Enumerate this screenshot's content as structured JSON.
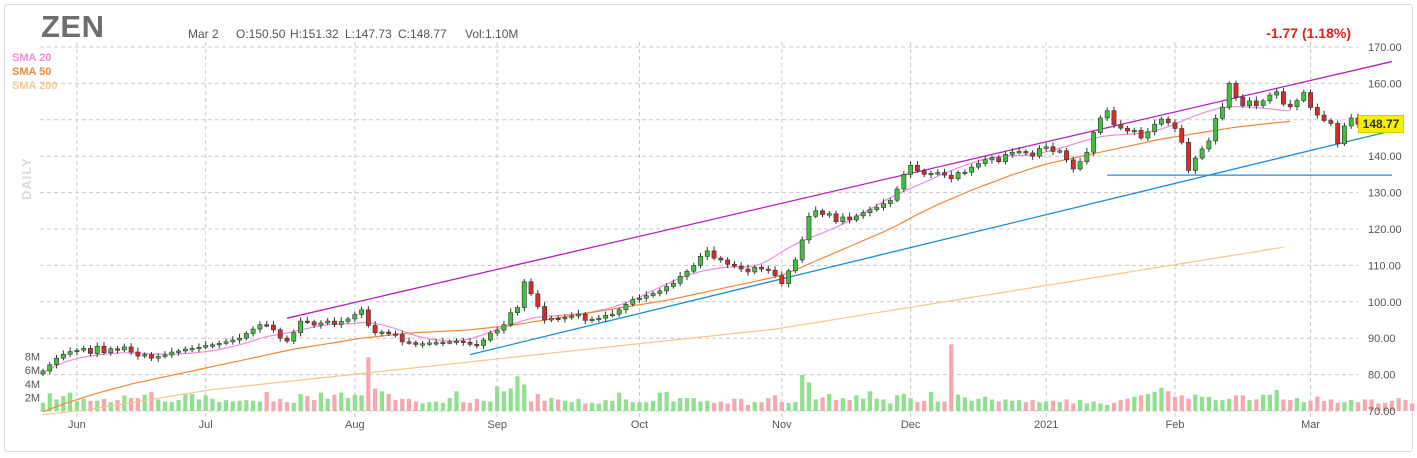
{
  "header": {
    "ticker": "ZEN",
    "date": "Mar 2",
    "open": "O:150.50",
    "high": "H:151.32",
    "low": "L:147.73",
    "close": "C:148.77",
    "volume": "Vol:1.10M",
    "change": "-1.77 (1.18%)",
    "last_price": "148.77",
    "interval": "DAILY"
  },
  "legend": [
    {
      "label": "SMA 20",
      "color": "#f08cdc"
    },
    {
      "label": "SMA 50",
      "color": "#f0883a"
    },
    {
      "label": "SMA 200",
      "color": "#f5c98e"
    }
  ],
  "colors": {
    "up": "#3fc13f",
    "down": "#d62c2c",
    "vol_up": "#8fe08f",
    "vol_down": "#f4a8b0",
    "channel": "#b61cc2",
    "trend": "#1a8fd6",
    "grid": "#c9c9c9"
  },
  "chart_data": {
    "type": "candlestick",
    "title": "ZEN",
    "y_axis": {
      "ticks": [
        "70.00",
        "80.00",
        "90.00",
        "100.00",
        "110.00",
        "120.00",
        "130.00",
        "140.00",
        "150.00",
        "160.00",
        "170.00"
      ],
      "min": 70,
      "max": 170
    },
    "volume_axis": {
      "ticks": [
        "2M",
        "4M",
        "6M",
        "8M"
      ],
      "max_millions": 10
    },
    "x_axis": {
      "labels": [
        "Jun",
        "Jul",
        "Aug",
        "Sep",
        "Oct",
        "Nov",
        "Dec",
        "2021",
        "Feb",
        "Mar"
      ]
    },
    "close": [
      81,
      82.7,
      84.5,
      85.6,
      86.3,
      86.7,
      87.2,
      85.8,
      87.8,
      86,
      87.1,
      86.8,
      87.6,
      86.2,
      85.1,
      85.5,
      84.5,
      85,
      85.4,
      86.2,
      86.5,
      87,
      87.2,
      87.5,
      88,
      88.2,
      88.6,
      89,
      89.5,
      90,
      91.3,
      92.5,
      93.7,
      93.6,
      92.3,
      90,
      89.2,
      91.5,
      94.7,
      94.5,
      93.6,
      94.2,
      94.7,
      93.8,
      94.6,
      95.3,
      96.5,
      97.8,
      93.5,
      91.5,
      91.7,
      91.2,
      91,
      89,
      88.8,
      88.3,
      88.5,
      88.7,
      88.8,
      88.9,
      89,
      89.2,
      88.9,
      88.3,
      88,
      89.5,
      91.4,
      92.2,
      93.7,
      97,
      98.4,
      105.5,
      102.2,
      98.7,
      95,
      95.5,
      95.3,
      95.7,
      96.1,
      96.6,
      94.9,
      95.2,
      95.5,
      96.3,
      96.6,
      97.8,
      99.3,
      100.6,
      101,
      101.7,
      102.3,
      103,
      104.2,
      105.1,
      107,
      108.4,
      110,
      112.5,
      114,
      112,
      111.5,
      110.3,
      109.8,
      109,
      108.2,
      109.5,
      109,
      108.7,
      107.2,
      105,
      108.5,
      111.5,
      117,
      123.5,
      125,
      124,
      124.2,
      122,
      123.3,
      122.5,
      123.6,
      124.5,
      125.3,
      125.9,
      127,
      127.9,
      131,
      135,
      137.5,
      136,
      135,
      135.3,
      135.5,
      134.8,
      133.8,
      135.5,
      135.6,
      137,
      138,
      139,
      139.6,
      138.5,
      140.5,
      141.1,
      141.3,
      140.9,
      140,
      142.1,
      142.6,
      141.3,
      141.5,
      139,
      136.5,
      138.5,
      141.1,
      146.5,
      150.5,
      152.5,
      148.7,
      147.7,
      146.9,
      147.1,
      145,
      146.7,
      148.8,
      150.2,
      149.2,
      147.6,
      143.8,
      136.1,
      139.5,
      142,
      144.2,
      150.4,
      153.5,
      160,
      156.2,
      153.9,
      155.2,
      153.9,
      155.2,
      156.8,
      157.7,
      154.3,
      153.6,
      155.3,
      157.5,
      153.4,
      151.3,
      149.8,
      149,
      143.4,
      148.3,
      150.5,
      148.8
    ],
    "volume_millions": [
      1.2,
      2.6,
      1.7,
      2.2,
      2.7,
      1.4,
      1.8,
      1.5,
      1.5,
      1.8,
      1.3,
      1.6,
      2.3,
      1.9,
      1.9,
      2.4,
      2.8,
      1.7,
      1.4,
      1.3,
      1.6,
      2.5,
      2.5,
      1.7,
      2.3,
      1.8,
      1.3,
      1.6,
      1.4,
      1.5,
      1.6,
      1.5,
      1.4,
      2.8,
      1.4,
      1.8,
      1.3,
      1.2,
      2.5,
      2.2,
      1.6,
      2.7,
      1.8,
      2.4,
      2.7,
      1.9,
      2.4,
      2.3,
      7.9,
      3.3,
      2.9,
      2.5,
      1.6,
      1.8,
      1.8,
      1.4,
      1.1,
      1.3,
      1.4,
      1.2,
      1.9,
      2.9,
      1.3,
      1.2,
      1.8,
      1.5,
      1.4,
      3.6,
      2.9,
      3.3,
      5.1,
      3.9,
      1.4,
      2.5,
      1.5,
      1.9,
      1.7,
      1.5,
      1.3,
      1.8,
      1.1,
      1.2,
      1.1,
      1.6,
      1.5,
      2.7,
      1.7,
      1.3,
      1.3,
      1.3,
      1.5,
      2.7,
      2.8,
      1.4,
      1.9,
      1.9,
      1.9,
      1.4,
      1.5,
      1.2,
      1.4,
      1.1,
      1.8,
      1.8,
      0.9,
      1.3,
      1.3,
      1.9,
      2.3,
      1.3,
      1.2,
      1.3,
      5.3,
      4.2,
      1.7,
      2,
      2.5,
      1.6,
      1.9,
      1.6,
      2.3,
      1.8,
      2.9,
      1.8,
      1.7,
      1.1,
      2.3,
      2.5,
      1.9,
      1.3,
      1.5,
      2.8,
      1.4,
      1.4,
      9.8,
      2.4,
      2,
      1.5,
      1.8,
      2.1,
      1.7,
      1.4,
      1.7,
      1.5,
      1.6,
      1.3,
      1.6,
      1.3,
      1.4,
      1.5,
      1.3,
      1.7,
      1.1,
      1.6,
      1.1,
      1.4,
      1.1,
      0.9,
      1.2,
      1.6,
      1.8,
      2.1,
      2.3,
      2.5,
      2.8,
      3.4,
      2.9,
      2.1,
      2.3,
      1.8,
      2.4,
      2.1,
      2.1,
      1.6,
      1.6,
      1.8,
      2.3,
      2.3,
      1.6,
      1.7,
      2.4,
      2.4,
      3.1,
      1.7,
      1.6,
      1.9,
      1.3,
      1.5,
      2.1,
      1.5,
      1.7,
      1.2,
      1.3,
      1.6,
      1.3,
      1.7,
      1.7,
      1.1,
      1.2,
      1.5,
      1.9,
      1.6,
      1.1
    ],
    "series": [
      {
        "name": "SMA 20",
        "values": [
          80.5,
          81.5,
          82.5,
          83.3,
          83.9,
          84.4,
          84.8,
          85.1,
          85.4,
          85.6,
          85.8,
          85.9,
          86,
          86,
          85.9,
          85.8,
          85.7,
          85.6,
          85.6,
          85.6,
          85.7,
          85.8,
          85.9,
          86.1,
          86.3,
          86.6,
          86.9,
          87.3,
          87.7,
          88.2,
          88.7,
          89.3,
          89.9,
          90.4,
          90.8,
          91.1,
          91.4,
          91.8,
          92.3,
          92.7,
          93.1,
          93.4,
          93.7,
          93.8,
          93.9,
          94,
          94.1,
          94.3,
          94.2,
          94,
          93.7,
          93.2,
          92.6,
          92,
          91.3,
          90.7,
          90.2,
          89.8,
          89.5,
          89.3,
          89.2,
          89.3,
          89.5,
          89.8,
          90.4,
          91,
          91.7,
          92.4,
          93.1,
          93.7,
          94.3,
          94.9,
          95.4,
          95.8,
          96,
          96.1,
          96.2,
          96.4,
          96.5,
          96.7,
          96.9,
          97.2,
          97.6,
          98,
          98.5,
          99.1,
          99.7,
          100.5,
          101.3,
          102.2,
          103.1,
          104,
          104.9,
          105.7,
          106.5,
          107.2,
          107.8,
          108.3,
          108.7,
          109,
          109.3,
          109.5,
          109.6,
          109.6,
          109.6,
          109.9,
          110.5,
          111.4,
          112.5,
          113.7,
          114.8,
          115.8,
          116.7,
          117.5,
          118.2,
          118.9,
          119.7,
          120.5,
          121.4,
          122.3,
          123.3,
          124.3,
          125.4,
          126.5,
          127.6,
          128.6,
          129.5,
          130.4,
          131.2,
          132,
          132.8,
          133.6,
          134.5,
          135.3,
          136.1,
          136.8,
          137.5,
          138.1,
          138.7,
          139.2,
          139.6,
          139.9,
          140.1,
          140.2,
          140.2,
          140.3,
          140.5,
          140.8,
          141.2,
          141.7,
          142.2,
          142.7,
          143.3,
          143.9,
          144.4,
          144.9,
          145.3,
          145.6,
          145.8,
          145.9,
          146,
          146.1,
          146.3,
          146.6,
          147,
          147.5,
          148.1,
          148.8,
          149.6,
          150.4,
          151.1,
          151.8,
          152.4,
          152.9,
          153.3,
          153.5,
          153.6,
          153.6,
          153.5,
          153.4,
          153.2,
          153,
          152.8,
          152.6,
          152.5
        ]
      },
      {
        "name": "SMA 50",
        "values": [
          69.8,
          70.5,
          71.2,
          71.9,
          72.5,
          73.1,
          73.7,
          74.3,
          74.9,
          75.4,
          75.9,
          76.4,
          76.9,
          77.4,
          77.8,
          78.2,
          78.6,
          79,
          79.4,
          79.8,
          80.2,
          80.6,
          81,
          81.4,
          81.8,
          82.2,
          82.6,
          83,
          83.4,
          83.8,
          84.2,
          84.6,
          85,
          85.4,
          85.8,
          86.2,
          86.6,
          87,
          87.3,
          87.6,
          87.9,
          88.2,
          88.5,
          88.8,
          89.1,
          89.4,
          89.7,
          90,
          90.2,
          90.4,
          90.6,
          90.8,
          91,
          91.2,
          91.4,
          91.5,
          91.6,
          91.7,
          91.8,
          91.9,
          92,
          92.1,
          92.2,
          92.3,
          92.5,
          92.7,
          92.9,
          93.1,
          93.3,
          93.5,
          93.8,
          94.1,
          94.4,
          94.7,
          95,
          95.3,
          95.6,
          95.9,
          96.2,
          96.5,
          96.8,
          97.1,
          97.4,
          97.7,
          98,
          98.3,
          98.6,
          98.9,
          99.2,
          99.5,
          99.8,
          100.1,
          100.4,
          100.8,
          101.2,
          101.6,
          102,
          102.4,
          102.8,
          103.2,
          103.6,
          104,
          104.4,
          104.8,
          105.2,
          105.6,
          106,
          106.4,
          106.8,
          107.4,
          108,
          108.8,
          109.6,
          110.4,
          111.2,
          112,
          112.8,
          113.6,
          114.4,
          115.2,
          116,
          116.8,
          117.6,
          118.4,
          119.2,
          120.1,
          121,
          122,
          123,
          124,
          124.9,
          125.8,
          126.7,
          127.5,
          128.3,
          129.1,
          129.9,
          130.7,
          131.4,
          132.1,
          132.8,
          133.5,
          134.2,
          134.9,
          135.5,
          136.1,
          136.7,
          137.3,
          137.8,
          138.3,
          138.7,
          139.1,
          139.5,
          139.9,
          140.3,
          140.7,
          141.1,
          141.5,
          141.9,
          142.3,
          142.7,
          143.1,
          143.5,
          143.9,
          144.3,
          144.7,
          145,
          145.3,
          145.6,
          145.9,
          146.2,
          146.5,
          146.8,
          147.1,
          147.4,
          147.7,
          148,
          148.2,
          148.4,
          148.6,
          148.8,
          149,
          149.2,
          149.4,
          149.6
        ]
      },
      {
        "name": "SMA 200",
        "values": [
          69,
          69.2,
          69.4,
          69.6,
          69.8,
          70,
          70.2,
          70.5,
          70.8,
          71.1,
          71.4,
          71.7,
          72,
          72.3,
          72.6,
          72.9,
          73.2,
          73.5,
          73.8,
          74.1,
          74.4,
          74.7,
          75,
          75.3,
          75.6,
          75.9,
          76.1,
          76.3,
          76.5,
          76.7,
          76.9,
          77.1,
          77.3,
          77.5,
          77.7,
          77.9,
          78.1,
          78.3,
          78.5,
          78.7,
          78.9,
          79.1,
          79.3,
          79.5,
          79.7,
          79.9,
          80.1,
          80.3,
          80.5,
          80.7,
          80.9,
          81.1,
          81.3,
          81.5,
          81.7,
          81.9,
          82.1,
          82.3,
          82.5,
          82.7,
          82.9,
          83.1,
          83.3,
          83.5,
          83.7,
          83.9,
          84.1,
          84.3,
          84.5,
          84.7,
          84.9,
          85.1,
          85.3,
          85.5,
          85.7,
          85.9,
          86.1,
          86.3,
          86.5,
          86.7,
          86.9,
          87.1,
          87.3,
          87.5,
          87.7,
          87.9,
          88.1,
          88.3,
          88.5,
          88.7,
          88.9,
          89.1,
          89.3,
          89.5,
          89.7,
          89.9,
          90.1,
          90.3,
          90.5,
          90.7,
          90.9,
          91.1,
          91.3,
          91.5,
          91.7,
          91.9,
          92.1,
          92.3,
          92.5,
          92.8,
          93.1,
          93.4,
          93.7,
          94,
          94.3,
          94.6,
          94.9,
          95.2,
          95.5,
          95.8,
          96.1,
          96.4,
          96.7,
          97,
          97.3,
          97.6,
          97.9,
          98.2,
          98.5,
          98.8,
          99.1,
          99.4,
          99.7,
          100,
          100.3,
          100.6,
          100.9,
          101.2,
          101.5,
          101.8,
          102.1,
          102.4,
          102.7,
          103,
          103.3,
          103.6,
          103.9,
          104.2,
          104.5,
          104.8,
          105.1,
          105.4,
          105.7,
          106,
          106.3,
          106.6,
          106.9,
          107.2,
          107.5,
          107.8,
          108.1,
          108.4,
          108.7,
          109,
          109.3,
          109.6,
          109.9,
          110.2,
          110.5,
          110.8,
          111.1,
          111.4,
          111.7,
          112,
          112.3,
          112.6,
          112.9,
          113.2,
          113.5,
          113.8,
          114.1,
          114.4,
          114.7,
          115
        ]
      }
    ],
    "drawings": [
      {
        "name": "channel-upper",
        "from": [
          36,
          95.5
        ],
        "to": [
          199,
          166
        ]
      },
      {
        "name": "trendline",
        "from": [
          63,
          85.5
        ],
        "to": [
          199,
          147
        ]
      },
      {
        "name": "support-line",
        "from": [
          157,
          134.8
        ],
        "to": [
          199,
          134.8
        ]
      }
    ],
    "grid": true,
    "legend_position": "top-left"
  }
}
